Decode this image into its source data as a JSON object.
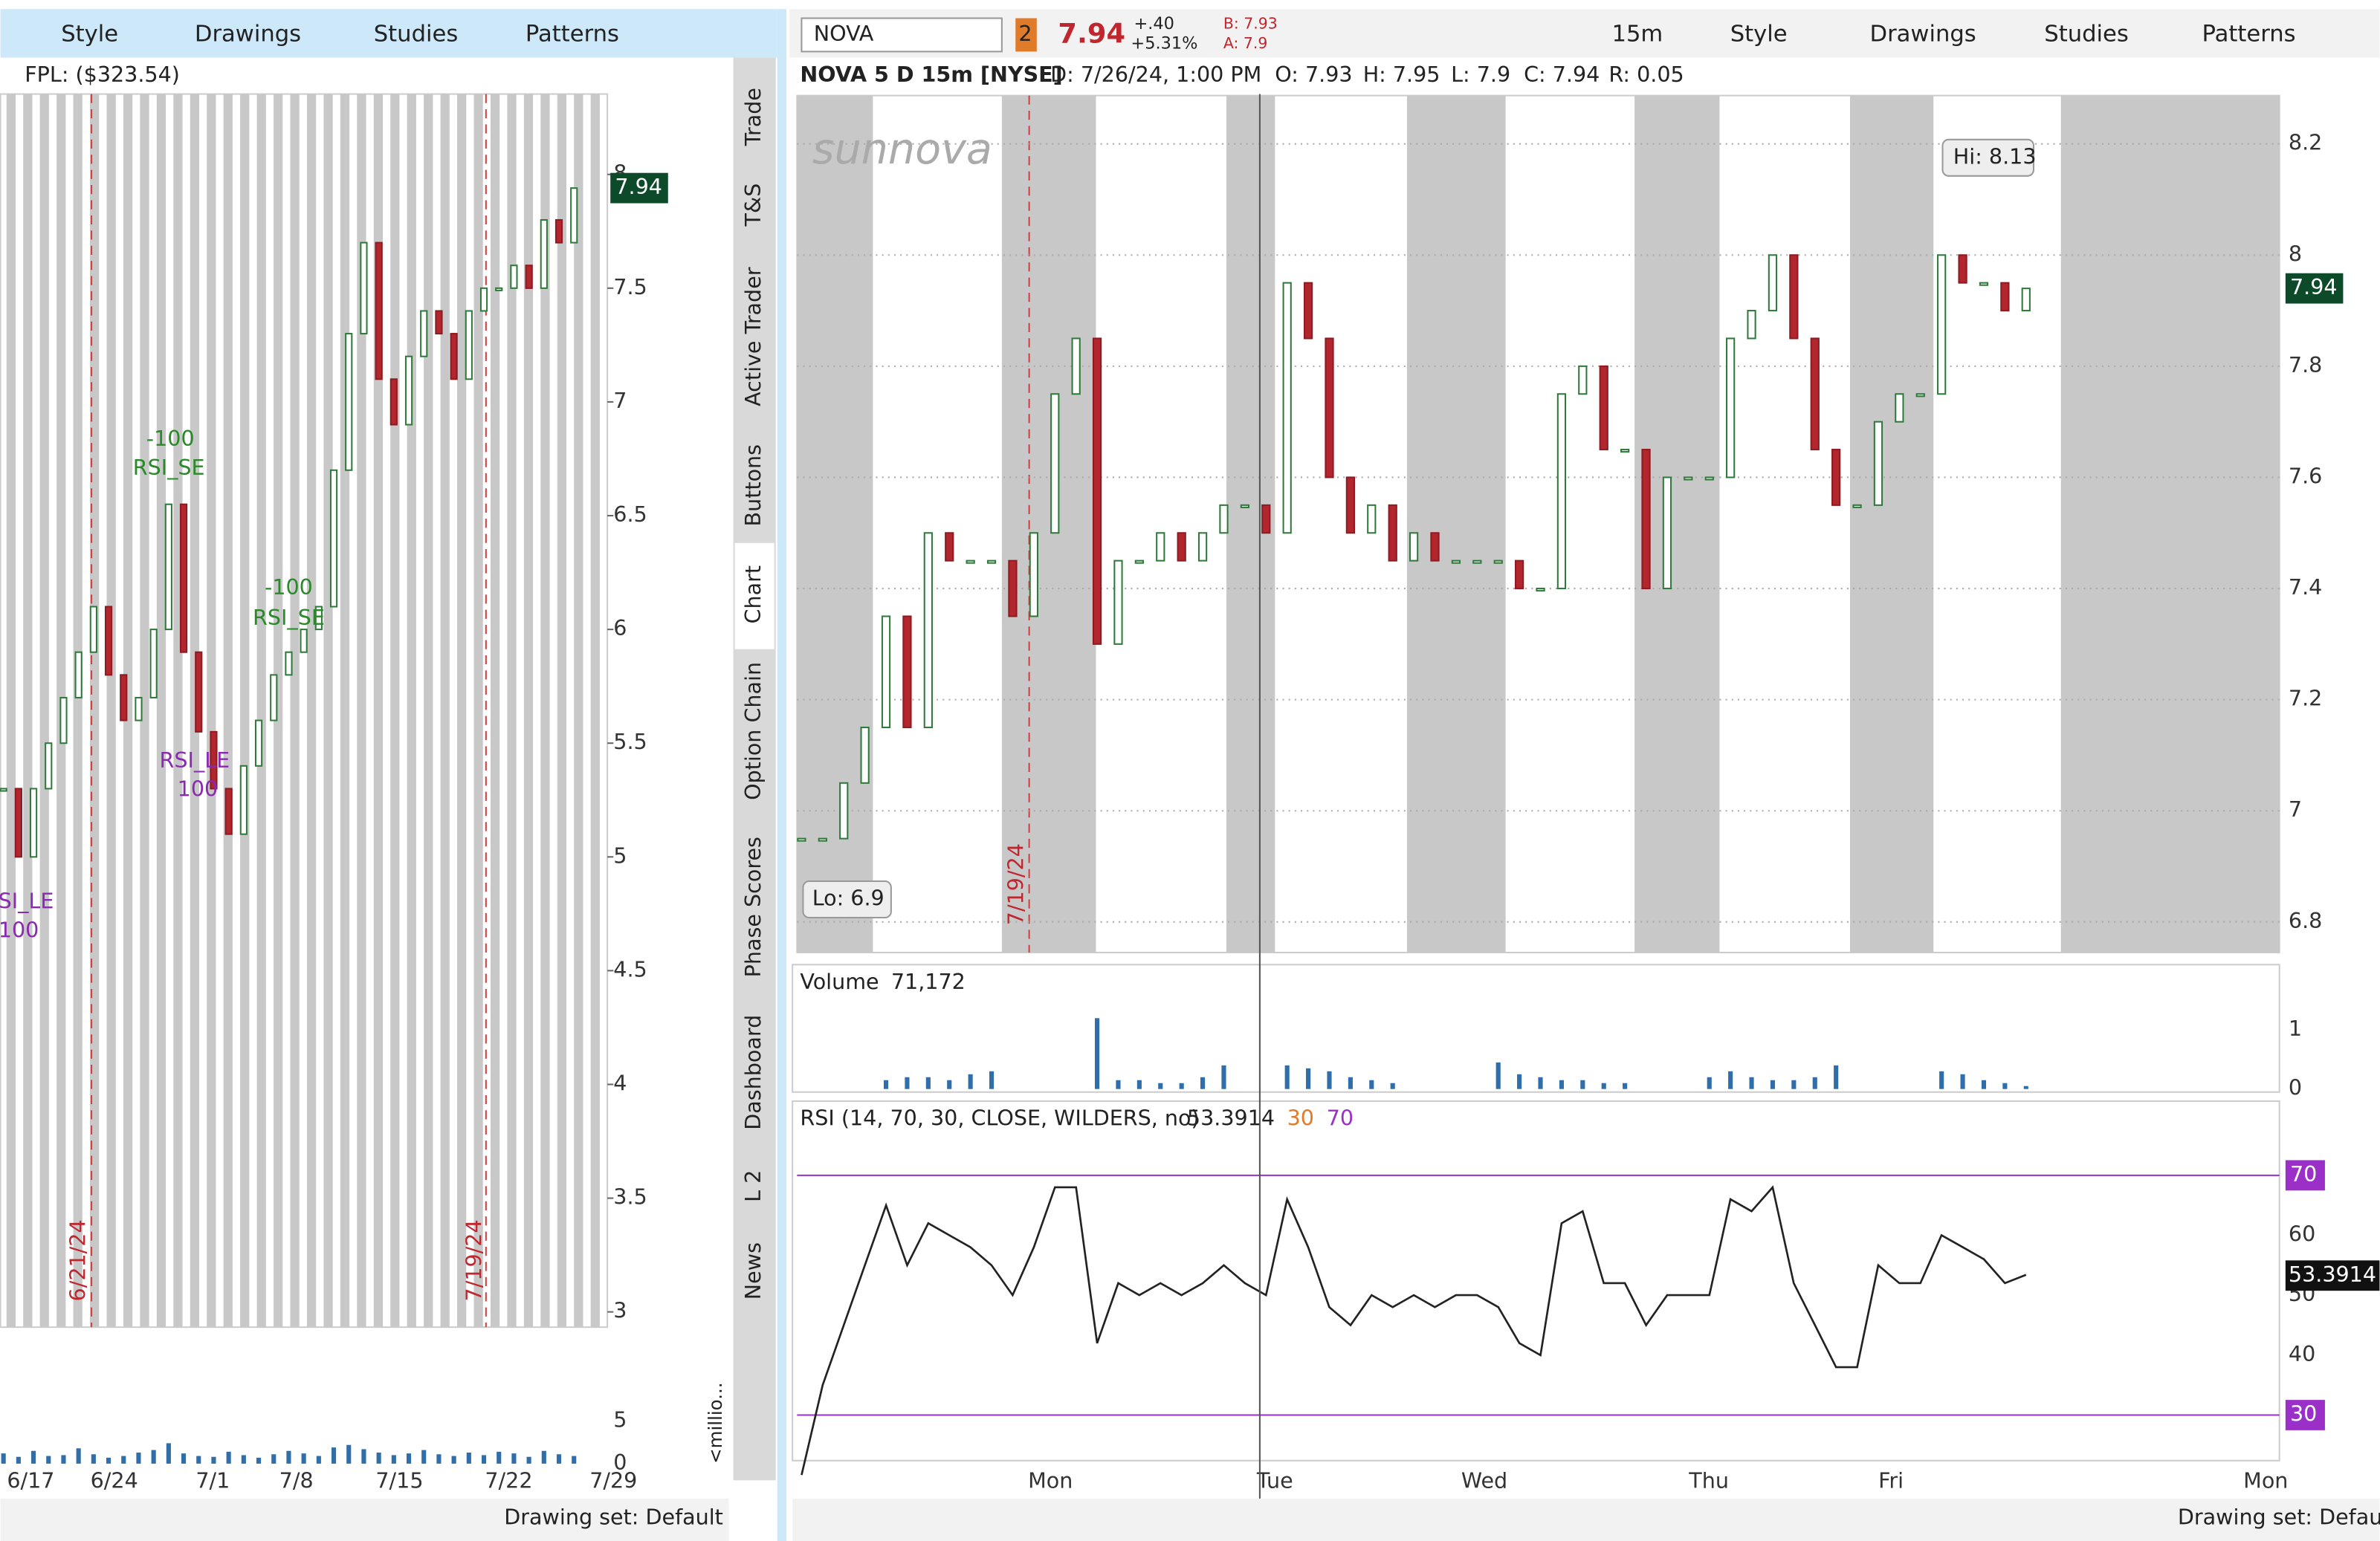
{
  "left_panel": {
    "toolbar": [
      "Style",
      "Drawings",
      "Studies",
      "Patterns"
    ],
    "fpl": "FPL: ($323.54)",
    "price_label": "7.94",
    "chart": {
      "type": "candlestick",
      "values": [
        5.3,
        5.0,
        5.3,
        5.5,
        5.7,
        5.9,
        6.1,
        5.8,
        5.6,
        5.7,
        6.0,
        6.55,
        5.9,
        5.55,
        5.3,
        5.1,
        5.4,
        5.6,
        5.8,
        5.9,
        6.0,
        6.1,
        6.7,
        7.3,
        7.7,
        7.1,
        6.9,
        7.2,
        7.4,
        7.3,
        7.1,
        7.4,
        7.5,
        7.5,
        7.6,
        7.5,
        7.8,
        7.7,
        7.94
      ],
      "ylim": [
        2.933,
        8.5
      ],
      "yticks": [
        3,
        3.5,
        4,
        4.5,
        5,
        5.5,
        6,
        6.5,
        7,
        7.5,
        8
      ],
      "x_labels": [
        "6/17",
        "6/24",
        "7/1",
        "7/8",
        "7/15",
        "7/22",
        "7/29"
      ],
      "markers": [
        "6/21/24",
        "7/19/24"
      ],
      "annotations": [
        "-100",
        "RSI_SE",
        "-100",
        "RSI_SE",
        "RSI_LE",
        "100",
        "RSI_LE",
        "100"
      ]
    },
    "volume": {
      "type": "bar",
      "values": [
        1.2,
        0.8,
        1.5,
        0.9,
        1.0,
        1.8,
        1.1,
        0.7,
        0.9,
        1.3,
        1.6,
        2.4,
        1.2,
        0.9,
        0.8,
        1.4,
        1.0,
        0.7,
        1.1,
        1.5,
        1.2,
        0.9,
        1.9,
        2.2,
        1.7,
        1.3,
        1.0,
        1.2,
        1.6,
        1.1,
        0.9,
        1.3,
        1.0,
        1.4,
        1.2,
        0.8,
        1.5,
        1.1,
        0.9
      ],
      "ylim": [
        0,
        9.8
      ],
      "yticks": [
        0,
        5
      ],
      "unit": "<millio..."
    },
    "drawing_set": "Drawing set: Default"
  },
  "side_tabs": [
    "Trade",
    "T&S",
    "Active Trader",
    "Buttons",
    "Chart",
    "Option Chain",
    "Phase Scores",
    "Dashboard",
    "L 2",
    "News"
  ],
  "right_panel": {
    "toolbar": {
      "symbol": "NOVA",
      "badge": "2",
      "last": "7.94",
      "change": "+.40",
      "change_pct": "+5.31%",
      "bid": "B: 7.93",
      "ask": "A: 7.9",
      "interval": "15m",
      "buttons": [
        "Style",
        "Drawings",
        "Studies",
        "Patterns"
      ]
    },
    "header": [
      "NOVA 5 D 15m [NYSE]",
      "D: 7/26/24, 1:00 PM",
      "O: 7.93",
      "H: 7.95",
      "L: 7.9",
      "C: 7.94",
      "R: 0.05"
    ],
    "logo": "sunnova",
    "price_label": "7.94",
    "chart": {
      "type": "candlestick",
      "values": [
        6.95,
        6.95,
        7.05,
        7.15,
        7.35,
        7.15,
        7.5,
        7.45,
        7.45,
        7.45,
        7.35,
        7.5,
        7.75,
        7.85,
        7.3,
        7.45,
        7.45,
        7.5,
        7.45,
        7.5,
        7.55,
        7.55,
        7.5,
        7.95,
        7.85,
        7.6,
        7.5,
        7.55,
        7.45,
        7.5,
        7.45,
        7.45,
        7.45,
        7.45,
        7.4,
        7.4,
        7.75,
        7.8,
        7.65,
        7.65,
        7.4,
        7.6,
        7.6,
        7.6,
        7.85,
        7.9,
        8.0,
        7.85,
        7.65,
        7.55,
        7.55,
        7.7,
        7.75,
        7.75,
        8.0,
        7.95,
        7.95,
        7.9,
        7.94
      ],
      "ylim": [
        6.745,
        8.287
      ],
      "yticks": [
        6.8,
        7,
        7.2,
        7.4,
        7.6,
        7.8,
        8,
        8.2
      ],
      "grid": true,
      "hi_label": "Hi: 8.13",
      "lo_label": "Lo: 6.9",
      "marker": "7/19/24"
    },
    "volume": {
      "type": "bar",
      "title": "Volume",
      "last": "71,172",
      "values": [
        0,
        0,
        0,
        0,
        0.15,
        0.2,
        0.2,
        0.15,
        0.25,
        0.3,
        0,
        0,
        0,
        0,
        1.2,
        0.15,
        0.15,
        0.1,
        0.1,
        0.2,
        0.4,
        0,
        0,
        0.4,
        0.35,
        0.3,
        0.2,
        0.15,
        0.1,
        0,
        0,
        0,
        0,
        0.45,
        0.25,
        0.2,
        0.15,
        0.15,
        0.1,
        0.1,
        0,
        0,
        0,
        0.2,
        0.3,
        0.2,
        0.15,
        0.15,
        0.2,
        0.4,
        0,
        0,
        0,
        0,
        0.3,
        0.25,
        0.15,
        0.1,
        0.05
      ],
      "ylim": [
        0,
        1.49
      ],
      "yticks": [
        0,
        1
      ],
      "color": "#2f6ea8"
    },
    "rsi": {
      "type": "line",
      "title": "RSI (14, 70, 30, CLOSE, WILDERS, no)",
      "last": "53.3914",
      "levels": [
        30,
        70
      ],
      "values": [
        20,
        35,
        45,
        55,
        65,
        55,
        62,
        60,
        58,
        55,
        50,
        58,
        68,
        68,
        42,
        52,
        50,
        52,
        50,
        52,
        55,
        52,
        50,
        66,
        58,
        48,
        45,
        50,
        48,
        50,
        48,
        50,
        50,
        48,
        42,
        40,
        62,
        64,
        52,
        52,
        45,
        50,
        50,
        50,
        66,
        64,
        68,
        52,
        45,
        38,
        38,
        55,
        52,
        52,
        60,
        58,
        56,
        52,
        53.39
      ],
      "ylim": [
        22.4,
        75.8
      ],
      "yticks": [
        40,
        50,
        60
      ],
      "color": "#222"
    },
    "x_labels": [
      "Mon",
      "Tue",
      "Wed",
      "Thu",
      "Fri",
      "Mon"
    ],
    "drawing_set": "Drawing set: Default"
  }
}
